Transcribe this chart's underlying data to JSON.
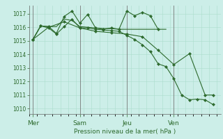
{
  "background_color": "#cceee8",
  "grid_color": "#aaddcc",
  "line_color": "#2d6a2d",
  "marker_color": "#2d6a2d",
  "ylabel_ticks": [
    1010,
    1011,
    1012,
    1013,
    1014,
    1015,
    1016,
    1017
  ],
  "ylim": [
    1009.6,
    1017.6
  ],
  "xlabel": "Pression niveau de la mer( hPa )",
  "day_labels": [
    "Mer",
    "Sam",
    "Jeu",
    "Ven"
  ],
  "day_positions": [
    0,
    36,
    72,
    108
  ],
  "xlim": [
    -3,
    144
  ],
  "series": [
    {
      "x": [
        0,
        6,
        12,
        18,
        24,
        30,
        36,
        42,
        48,
        54,
        60,
        66,
        72,
        78,
        84,
        90,
        96
      ],
      "y": [
        1015.1,
        1016.1,
        1016.05,
        1015.55,
        1016.8,
        1017.2,
        1016.3,
        1016.95,
        1015.95,
        1015.85,
        1015.95,
        1015.85,
        1017.2,
        1016.85,
        1017.1,
        1016.85,
        1015.85
      ],
      "has_marker": true
    },
    {
      "x": [
        0,
        6,
        12,
        18,
        24,
        30,
        36,
        42,
        48,
        54,
        60,
        66,
        72,
        78,
        84,
        90,
        96,
        102
      ],
      "y": [
        1015.1,
        1016.1,
        1016.05,
        1016.05,
        1016.6,
        1016.5,
        1016.05,
        1016.0,
        1015.95,
        1015.9,
        1015.9,
        1015.85,
        1015.85,
        1015.85,
        1015.85,
        1015.85,
        1015.85,
        1015.85
      ],
      "has_marker": false
    },
    {
      "x": [
        0,
        6,
        12,
        18,
        24,
        30,
        36,
        42,
        48,
        54,
        60,
        66,
        72,
        78,
        84,
        90,
        96,
        102,
        108,
        114,
        120,
        126,
        132,
        138
      ],
      "y": [
        1015.1,
        1016.1,
        1015.95,
        1015.5,
        1016.05,
        1016.6,
        1015.95,
        1015.95,
        1015.85,
        1015.8,
        1015.75,
        1015.7,
        1015.4,
        1015.1,
        1014.7,
        1014.2,
        1013.3,
        1013.1,
        1012.2,
        1011.0,
        1010.65,
        1010.7,
        1010.65,
        1010.3
      ],
      "has_marker": true
    },
    {
      "x": [
        0,
        12,
        24,
        36,
        48,
        60,
        72,
        84,
        96,
        108,
        120,
        132,
        138
      ],
      "y": [
        1015.1,
        1016.0,
        1016.4,
        1015.95,
        1015.7,
        1015.6,
        1015.5,
        1015.3,
        1014.3,
        1013.25,
        1014.05,
        1011.0,
        1011.0
      ],
      "has_marker": true
    }
  ]
}
